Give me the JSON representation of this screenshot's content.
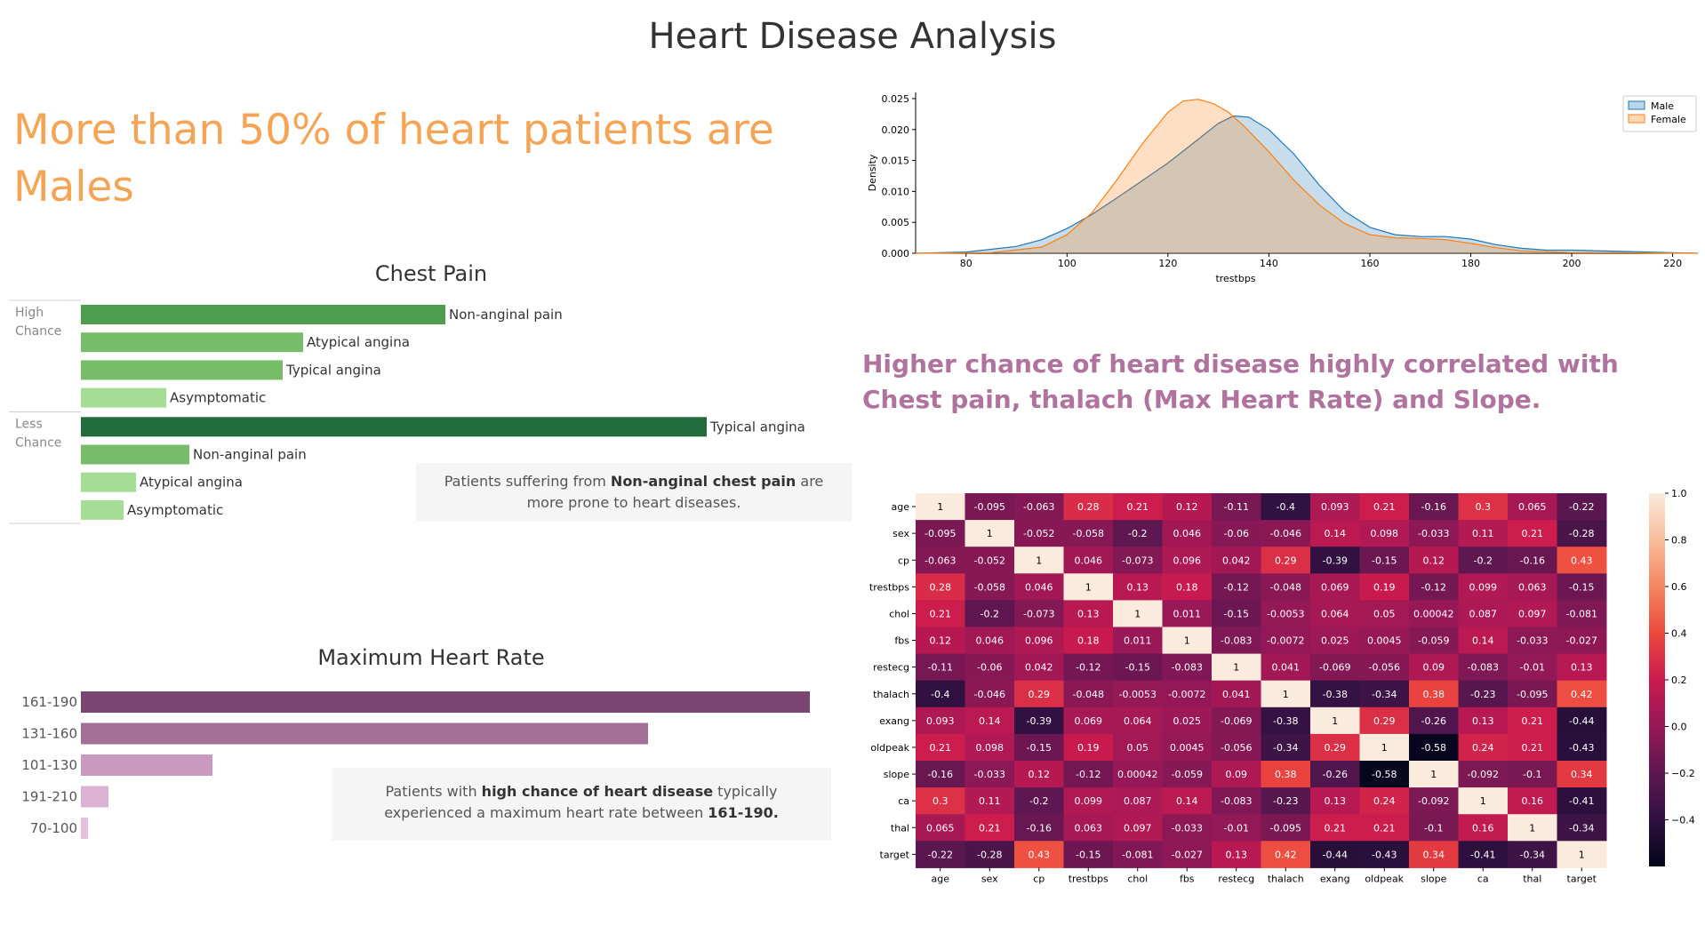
{
  "dashboard": {
    "title": "Heart Disease Analysis",
    "headline": "More than 50% of heart patients are Males",
    "insight": "Higher chance of heart disease highly correlated with Chest pain, thalach (Max Heart Rate) and Slope."
  },
  "chest_pain": {
    "title": "Chest Pain",
    "note": {
      "pre": "Patients suffering from ",
      "bold": "Non-anginal chest pain",
      "post": " are more prone to heart diseases."
    }
  },
  "max_heart_rate": {
    "title": "Maximum Heart Rate",
    "note": {
      "pre": "Patients with ",
      "bold": "high chance of heart disease",
      "mid": " typically experienced a maximum heart rate between ",
      "bold2": "161-190."
    }
  },
  "chart_data": [
    {
      "id": "chest-pain",
      "type": "bar",
      "title": "Chest Pain",
      "orientation": "horizontal",
      "groups": [
        {
          "name": "High Chance",
          "bars": [
            {
              "label": "Non-anginal pain",
              "value": 410,
              "color": "#4f9d4f"
            },
            {
              "label": "Atypical angina",
              "value": 250,
              "color": "#76bd6a"
            },
            {
              "label": "Typical angina",
              "value": 227,
              "color": "#76bd6a"
            },
            {
              "label": "Asymptomatic",
              "value": 96,
              "color": "#a6dd95"
            }
          ]
        },
        {
          "name": "Less Chance",
          "bars": [
            {
              "label": "Typical angina",
              "value": 704,
              "color": "#226b3a"
            },
            {
              "label": "Non-anginal pain",
              "value": 122,
              "color": "#76bd6a"
            },
            {
              "label": "Atypical angina",
              "value": 62,
              "color": "#a6dd95"
            },
            {
              "label": "Asymptomatic",
              "value": 48,
              "color": "#a6dd95"
            }
          ]
        }
      ]
    },
    {
      "id": "max-heart-rate",
      "type": "bar",
      "title": "Maximum Heart Rate",
      "orientation": "horizontal",
      "categories": [
        "161-190",
        "131-160",
        "101-130",
        "191-210",
        "70-100"
      ],
      "values": [
        820,
        638,
        148,
        31,
        8
      ],
      "colors": [
        "#7a4570",
        "#a27096",
        "#c99ac0",
        "#dcb2d4",
        "#e6c1de"
      ]
    },
    {
      "id": "trestbps-density",
      "type": "area",
      "xlabel": "trestbps",
      "ylabel": "Density",
      "xlim": [
        70,
        225
      ],
      "ylim": [
        0,
        0.026
      ],
      "xticks": [
        80,
        100,
        120,
        140,
        160,
        180,
        200,
        220
      ],
      "yticks": [
        "0.000",
        "0.005",
        "0.010",
        "0.015",
        "0.020",
        "0.025"
      ],
      "legend": "top-right",
      "series": [
        {
          "name": "Male",
          "color": "#1f77b4",
          "x": [
            70,
            80,
            90,
            95,
            100,
            105,
            110,
            115,
            120,
            125,
            130,
            133,
            136,
            140,
            145,
            150,
            155,
            160,
            165,
            170,
            175,
            180,
            185,
            190,
            195,
            200,
            210,
            220,
            225
          ],
          "y": [
            0,
            0.0002,
            0.0011,
            0.0022,
            0.004,
            0.0063,
            0.009,
            0.0118,
            0.0146,
            0.0178,
            0.021,
            0.0222,
            0.022,
            0.02,
            0.016,
            0.011,
            0.0068,
            0.0042,
            0.003,
            0.0027,
            0.0027,
            0.0023,
            0.0014,
            0.0008,
            0.0005,
            0.0005,
            0.0003,
            0.0001,
            0
          ]
        },
        {
          "name": "Female",
          "color": "#ff7f0e",
          "x": [
            70,
            85,
            95,
            100,
            105,
            110,
            115,
            120,
            123,
            126,
            129,
            132,
            135,
            140,
            145,
            150,
            155,
            160,
            165,
            170,
            175,
            180,
            185,
            190,
            200,
            205,
            210,
            225
          ],
          "y": [
            0,
            0.0001,
            0.001,
            0.003,
            0.0066,
            0.012,
            0.0178,
            0.0228,
            0.0246,
            0.0249,
            0.0242,
            0.0228,
            0.0206,
            0.0164,
            0.0118,
            0.0078,
            0.0048,
            0.003,
            0.0025,
            0.0024,
            0.0022,
            0.0016,
            0.0009,
            0.0004,
            0.0001,
            0.0001,
            0.0001,
            0
          ]
        }
      ]
    },
    {
      "id": "correlation-heatmap",
      "type": "heatmap",
      "labels": [
        "age",
        "sex",
        "cp",
        "trestbps",
        "chol",
        "fbs",
        "restecg",
        "thalach",
        "exang",
        "oldpeak",
        "slope",
        "ca",
        "thal",
        "target"
      ],
      "colorbar_range": [
        -0.6,
        1.0
      ],
      "colorbar_ticks": [
        "1.0",
        "0.8",
        "0.6",
        "0.4",
        "0.2",
        "0.0",
        "−0.2",
        "−0.4"
      ],
      "matrix": [
        [
          "1",
          "-0.095",
          "-0.063",
          "0.28",
          "0.21",
          "0.12",
          "-0.11",
          "-0.4",
          "0.093",
          "0.21",
          "-0.16",
          "0.3",
          "0.065",
          "-0.22"
        ],
        [
          "-0.095",
          "1",
          "-0.052",
          "-0.058",
          "-0.2",
          "0.046",
          "-0.06",
          "-0.046",
          "0.14",
          "0.098",
          "-0.033",
          "0.11",
          "0.21",
          "-0.28"
        ],
        [
          "-0.063",
          "-0.052",
          "1",
          "0.046",
          "-0.073",
          "0.096",
          "0.042",
          "0.29",
          "-0.39",
          "-0.15",
          "0.12",
          "-0.2",
          "-0.16",
          "0.43"
        ],
        [
          "0.28",
          "-0.058",
          "0.046",
          "1",
          "0.13",
          "0.18",
          "-0.12",
          "-0.048",
          "0.069",
          "0.19",
          "-0.12",
          "0.099",
          "0.063",
          "-0.15"
        ],
        [
          "0.21",
          "-0.2",
          "-0.073",
          "0.13",
          "1",
          "0.011",
          "-0.15",
          "-0.0053",
          "0.064",
          "0.05",
          "0.00042",
          "0.087",
          "0.097",
          "-0.081"
        ],
        [
          "0.12",
          "0.046",
          "0.096",
          "0.18",
          "0.011",
          "1",
          "-0.083",
          "-0.0072",
          "0.025",
          "0.0045",
          "-0.059",
          "0.14",
          "-0.033",
          "-0.027"
        ],
        [
          "-0.11",
          "-0.06",
          "0.042",
          "-0.12",
          "-0.15",
          "-0.083",
          "1",
          "0.041",
          "-0.069",
          "-0.056",
          "0.09",
          "-0.083",
          "-0.01",
          "0.13"
        ],
        [
          "-0.4",
          "-0.046",
          "0.29",
          "-0.048",
          "-0.0053",
          "-0.0072",
          "0.041",
          "1",
          "-0.38",
          "-0.34",
          "0.38",
          "-0.23",
          "-0.095",
          "0.42"
        ],
        [
          "0.093",
          "0.14",
          "-0.39",
          "0.069",
          "0.064",
          "0.025",
          "-0.069",
          "-0.38",
          "1",
          "0.29",
          "-0.26",
          "0.13",
          "0.21",
          "-0.44"
        ],
        [
          "0.21",
          "0.098",
          "-0.15",
          "0.19",
          "0.05",
          "0.0045",
          "-0.056",
          "-0.34",
          "0.29",
          "1",
          "-0.58",
          "0.24",
          "0.21",
          "-0.43"
        ],
        [
          "-0.16",
          "-0.033",
          "0.12",
          "-0.12",
          "0.00042",
          "-0.059",
          "0.09",
          "0.38",
          "-0.26",
          "-0.58",
          "1",
          "-0.092",
          "-0.1",
          "0.34"
        ],
        [
          "0.3",
          "0.11",
          "-0.2",
          "0.099",
          "0.087",
          "0.14",
          "-0.083",
          "-0.23",
          "0.13",
          "0.24",
          "-0.092",
          "1",
          "0.16",
          "-0.41"
        ],
        [
          "0.065",
          "0.21",
          "-0.16",
          "0.063",
          "0.097",
          "-0.033",
          "-0.01",
          "-0.095",
          "0.21",
          "0.21",
          "-0.1",
          "0.16",
          "1",
          "-0.34"
        ],
        [
          "-0.22",
          "-0.28",
          "0.43",
          "-0.15",
          "-0.081",
          "-0.027",
          "0.13",
          "0.42",
          "-0.44",
          "-0.43",
          "0.34",
          "-0.41",
          "-0.34",
          "1"
        ]
      ]
    }
  ]
}
